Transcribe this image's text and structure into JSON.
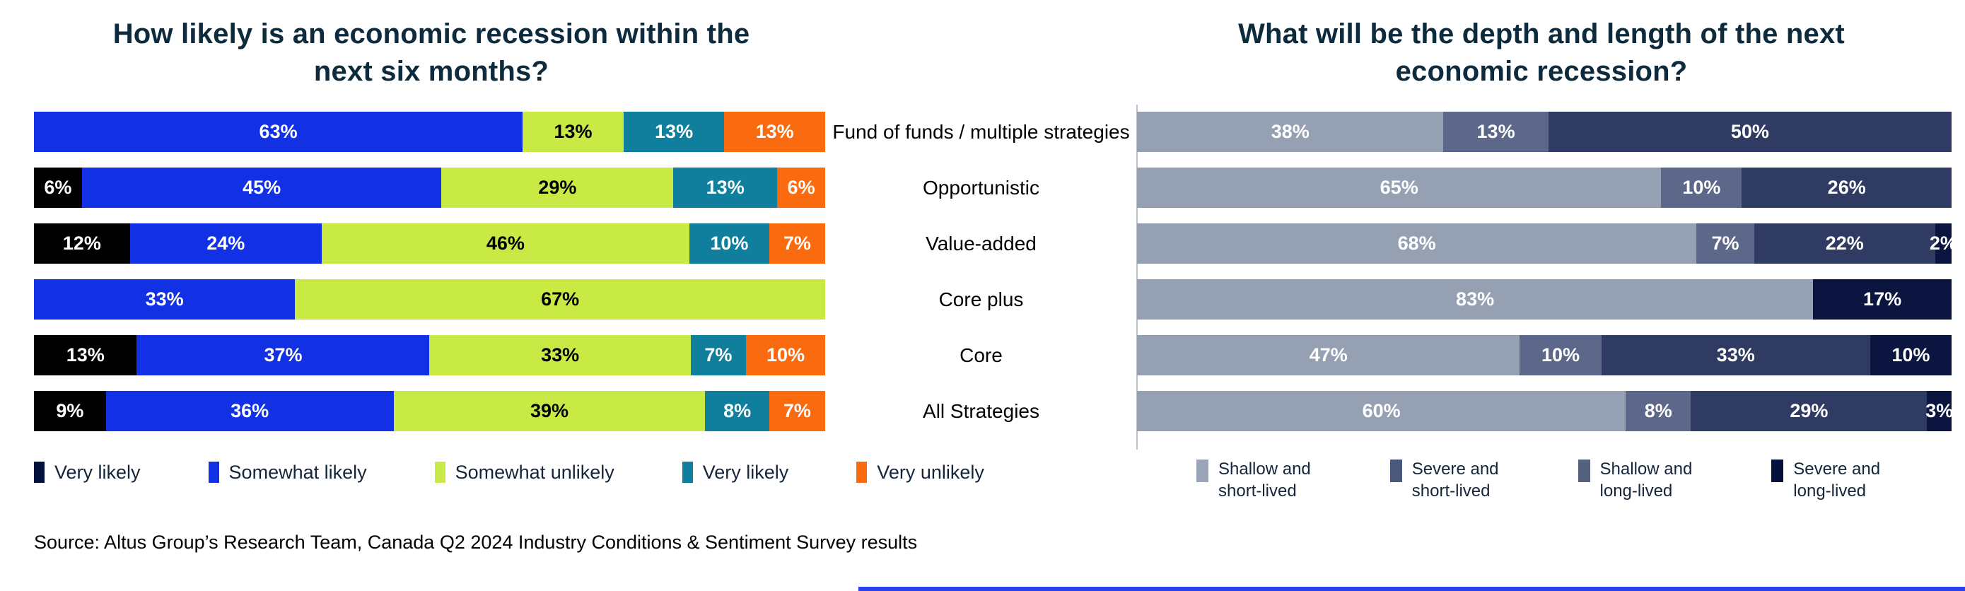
{
  "page": {
    "source": "Source: Altus Group’s Research Team, Canada Q2 2024 Industry Conditions & Sentiment Survey results",
    "accent_bar_color": "#2B41EE",
    "title_color": "#0E2B3D"
  },
  "chart_data": [
    {
      "type": "bar",
      "subtype": "horizontal_stacked_percent",
      "title": "How likely is an economic recession within the next six months?",
      "categories": [
        "Fund of funds / multiple strategies",
        "Opportunistic",
        "Value-added",
        "Core plus",
        "Core",
        "All Strategies"
      ],
      "xlim": [
        0,
        100
      ],
      "grid": false,
      "legend_position": "bottom",
      "series": [
        {
          "name": "Very likely",
          "color": "#000000",
          "legend_color": "#03103C",
          "label_color": "#ffffff",
          "values": [
            0,
            6,
            12,
            0,
            13,
            9
          ]
        },
        {
          "name": "Somewhat likely",
          "color": "#1230E4",
          "legend_color": "#1230E4",
          "label_color": "#ffffff",
          "values": [
            63,
            45,
            24,
            33,
            37,
            36
          ]
        },
        {
          "name": "Somewhat unlikely",
          "color": "#C9EA45",
          "legend_color": "#C9EA45",
          "label_color": "#000000",
          "values": [
            13,
            29,
            46,
            67,
            33,
            39
          ]
        },
        {
          "name": "Very likely",
          "color": "#0F7F9D",
          "legend_color": "#0F7F9D",
          "label_color": "#ffffff",
          "values": [
            13,
            13,
            10,
            0,
            7,
            8
          ]
        },
        {
          "name": "Very unlikely",
          "color": "#FA6A0F",
          "legend_color": "#FA6A0F",
          "label_color": "#ffffff",
          "values": [
            13,
            6,
            7,
            0,
            10,
            7
          ]
        }
      ]
    },
    {
      "type": "bar",
      "subtype": "horizontal_stacked_percent",
      "title": "What will be the depth and length of the next economic recession?",
      "categories": [
        "Fund of funds / multiple strategies",
        "Opportunistic",
        "Value-added",
        "Core plus",
        "Core",
        "All Strategies"
      ],
      "xlim": [
        0,
        100
      ],
      "grid": false,
      "legend_position": "bottom",
      "series": [
        {
          "name": "Shallow and short-lived",
          "legend_lines": [
            "Shallow and",
            "short-lived"
          ],
          "color": "#95A1B3",
          "legend_color": "#9AA5B8",
          "label_color": "#ffffff",
          "values": [
            38,
            65,
            68,
            83,
            47,
            60
          ]
        },
        {
          "name": "Severe and short-lived",
          "legend_lines": [
            "Severe and",
            "short-lived"
          ],
          "color": "#5C6789",
          "legend_color": "#4C587B",
          "label_color": "#ffffff",
          "values": [
            13,
            10,
            7,
            0,
            10,
            8
          ]
        },
        {
          "name": "Shallow and long-lived",
          "legend_lines": [
            "Shallow and",
            "long-lived"
          ],
          "color": "#2F3B63",
          "legend_color": "#56617F",
          "label_color": "#ffffff",
          "values": [
            50,
            26,
            22,
            0,
            33,
            29
          ]
        },
        {
          "name": "Severe and long-lived",
          "legend_lines": [
            "Severe and",
            "long-lived"
          ],
          "color": "#0C1540",
          "legend_color": "#06103A",
          "label_color": "#ffffff",
          "values": [
            0,
            0,
            2,
            17,
            10,
            3
          ]
        }
      ]
    }
  ]
}
